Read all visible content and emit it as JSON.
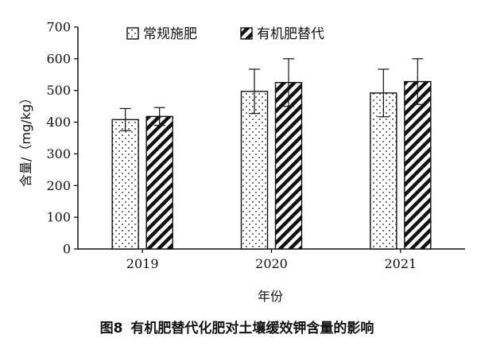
{
  "chart_data": {
    "type": "bar",
    "categories": [
      "2019",
      "2020",
      "2021"
    ],
    "series": [
      {
        "name": "常规施肥",
        "pattern": "dots",
        "values": [
          408,
          497,
          492
        ],
        "errors": [
          35,
          70,
          75
        ]
      },
      {
        "name": "有机肥替代",
        "pattern": "hatch",
        "values": [
          418,
          525,
          528
        ],
        "errors": [
          28,
          75,
          72
        ]
      }
    ],
    "xlabel": "年份",
    "ylabel": "含量/（mg/kg）",
    "ylim": [
      0,
      700
    ],
    "yticks": [
      0,
      100,
      200,
      300,
      400,
      500,
      600,
      700
    ],
    "grid": false,
    "legend_position": "top"
  },
  "caption": {
    "figure_no": "图8",
    "title": "有机肥替代化肥对土壤缓效钾含量的影响"
  },
  "colors": {
    "ink": "#111111",
    "background": "#ffffff"
  }
}
